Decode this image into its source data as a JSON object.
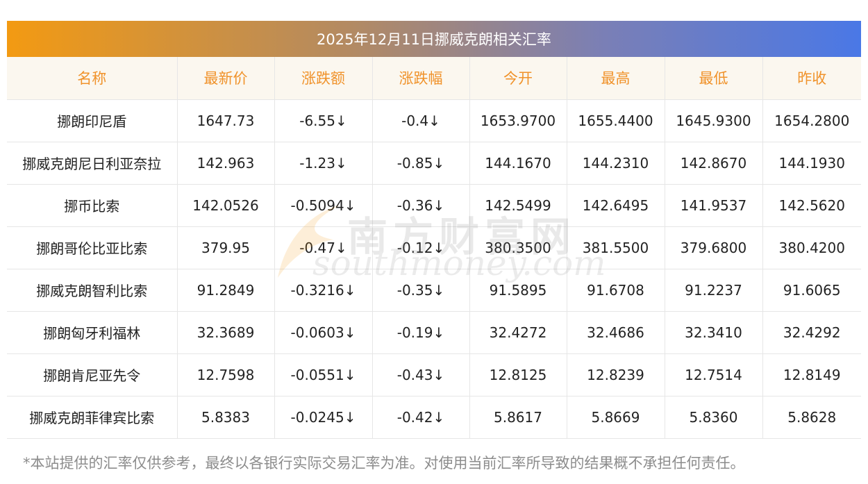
{
  "title": "2025年12月11日挪威克朗相关汇率",
  "columns": [
    "名称",
    "最新价",
    "涨跌额",
    "涨跌幅",
    "今开",
    "最高",
    "最低",
    "昨收"
  ],
  "rows": [
    {
      "name": "挪朗印尼盾",
      "price": "1647.73",
      "change": "-6.55↓",
      "pct": "-0.4↓",
      "open": "1653.9700",
      "high": "1655.4400",
      "low": "1645.9300",
      "prev": "1654.2800"
    },
    {
      "name": "挪威克朗尼日利亚奈拉",
      "price": "142.963",
      "change": "-1.23↓",
      "pct": "-0.85↓",
      "open": "144.1670",
      "high": "144.2310",
      "low": "142.8670",
      "prev": "144.1930"
    },
    {
      "name": "挪币比索",
      "price": "142.0526",
      "change": "-0.5094↓",
      "pct": "-0.36↓",
      "open": "142.5499",
      "high": "142.6495",
      "low": "141.9537",
      "prev": "142.5620"
    },
    {
      "name": "挪朗哥伦比亚比索",
      "price": "379.95",
      "change": "-0.47↓",
      "pct": "-0.12↓",
      "open": "380.3500",
      "high": "381.5500",
      "low": "379.6800",
      "prev": "380.4200"
    },
    {
      "name": "挪威克朗智利比索",
      "price": "91.2849",
      "change": "-0.3216↓",
      "pct": "-0.35↓",
      "open": "91.5895",
      "high": "91.6708",
      "low": "91.2237",
      "prev": "91.6065"
    },
    {
      "name": "挪朗匈牙利福林",
      "price": "32.3689",
      "change": "-0.0603↓",
      "pct": "-0.19↓",
      "open": "32.4272",
      "high": "32.4686",
      "low": "32.3410",
      "prev": "32.4292"
    },
    {
      "name": "挪朗肯尼亚先令",
      "price": "12.7598",
      "change": "-0.0551↓",
      "pct": "-0.43↓",
      "open": "12.8125",
      "high": "12.8239",
      "low": "12.7514",
      "prev": "12.8149"
    },
    {
      "name": "挪威克朗菲律宾比索",
      "price": "5.8383",
      "change": "-0.0245↓",
      "pct": "-0.42↓",
      "open": "5.8617",
      "high": "5.8669",
      "low": "5.8360",
      "prev": "5.8628"
    }
  ],
  "watermark": {
    "cn": "南方财富网",
    "en": "southmoney.com"
  },
  "footnote": "*本站提供的汇率仅供参考，最终以各银行实际交易汇率为准。对使用当前汇率所导致的结果概不承担任何责任。",
  "colors": {
    "title_gradient_start": "#f39a12",
    "title_gradient_end": "#4a78e6",
    "header_text": "#f0922a",
    "header_bg": "#fbf7ef",
    "value_green": "#1f8f1f",
    "footnote_gray": "#8c8c8c"
  }
}
